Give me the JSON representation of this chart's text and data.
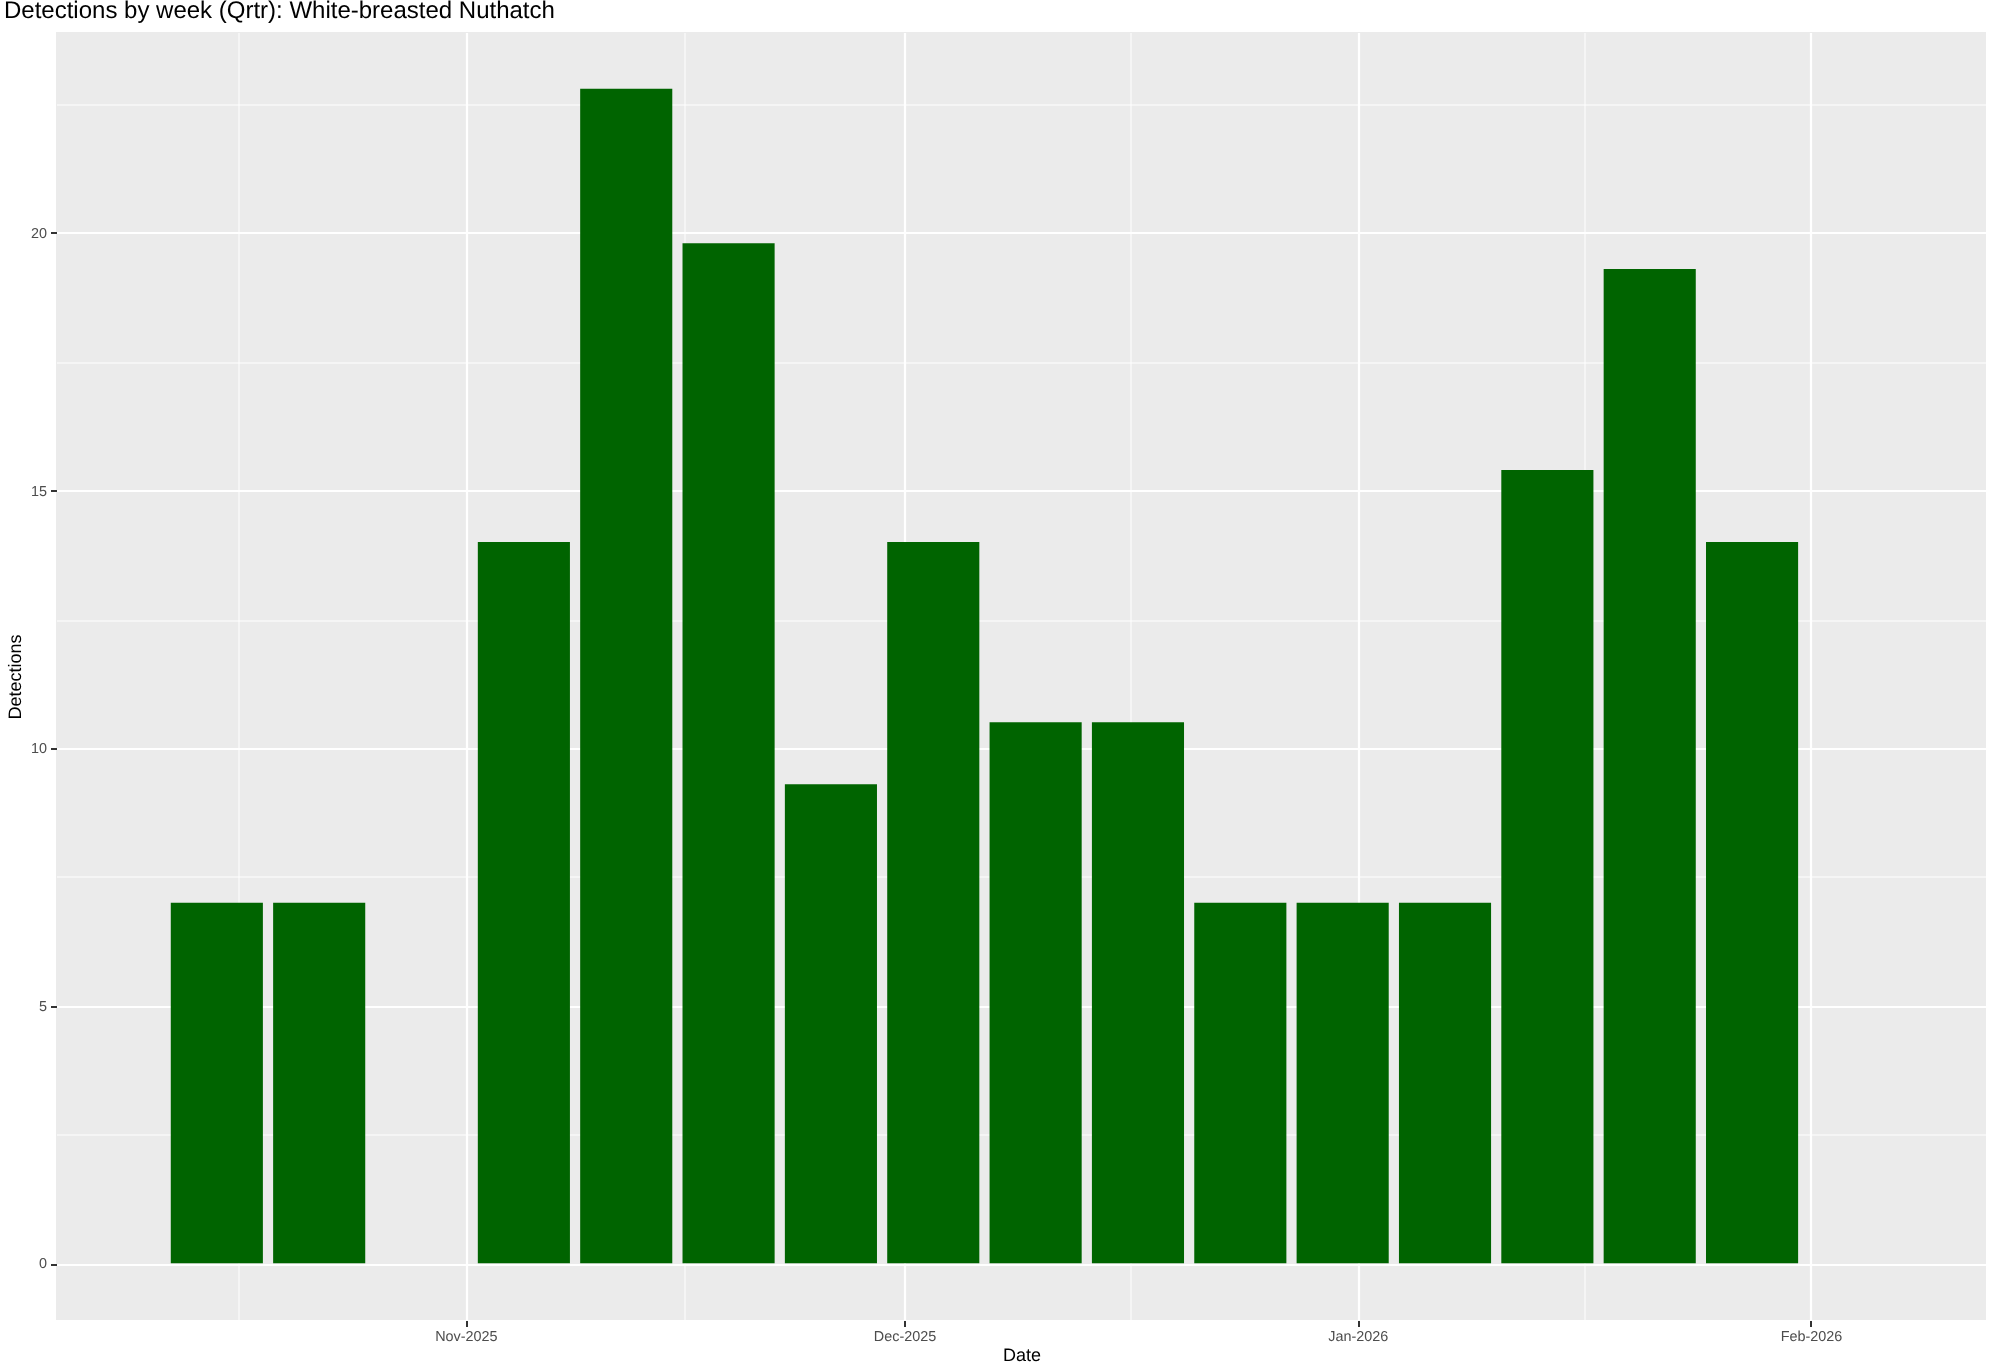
{
  "chart_data": {
    "type": "bar",
    "title": "Detections by week (Qrtr): White-breasted Nuthatch",
    "xlabel": "Date",
    "ylabel": "Detections",
    "x": [
      "2025-10-15",
      "2025-10-22",
      "2025-11-05",
      "2025-11-12",
      "2025-11-19",
      "2025-11-26",
      "2025-12-03",
      "2025-12-10",
      "2025-12-17",
      "2025-12-24",
      "2025-12-31",
      "2026-01-07",
      "2026-01-14",
      "2026-01-21",
      "2026-01-28"
    ],
    "values": [
      7,
      7,
      14,
      22.8,
      19.8,
      9.3,
      14,
      10.5,
      10.5,
      7,
      7,
      7,
      15.4,
      19.3,
      14
    ],
    "color": "#006400",
    "xlim": [
      "2025-10-04",
      "2026-02-13"
    ],
    "xticks": [
      {
        "value": "2025-10-16T12:00",
        "label": null
      },
      {
        "value": "2025-11-01",
        "label": "Nov-2025"
      },
      {
        "value": "2025-11-16",
        "label": null
      },
      {
        "value": "2025-12-01",
        "label": "Dec-2025"
      },
      {
        "value": "2025-12-16T12:00",
        "label": null
      },
      {
        "value": "2026-01-01",
        "label": "Jan-2026"
      },
      {
        "value": "2026-01-16T12:00",
        "label": null
      },
      {
        "value": "2026-02-01",
        "label": "Feb-2026"
      }
    ],
    "ylim": [
      -1.1,
      23.9
    ],
    "yticks": [
      0,
      {
        "value": 2.5,
        "label": null
      },
      5,
      {
        "value": 7.5,
        "label": null
      },
      10,
      {
        "value": 12.5,
        "label": null
      },
      15,
      {
        "value": 17.5,
        "label": null
      },
      20,
      {
        "value": 22.5,
        "label": null
      }
    ],
    "grid": true
  }
}
